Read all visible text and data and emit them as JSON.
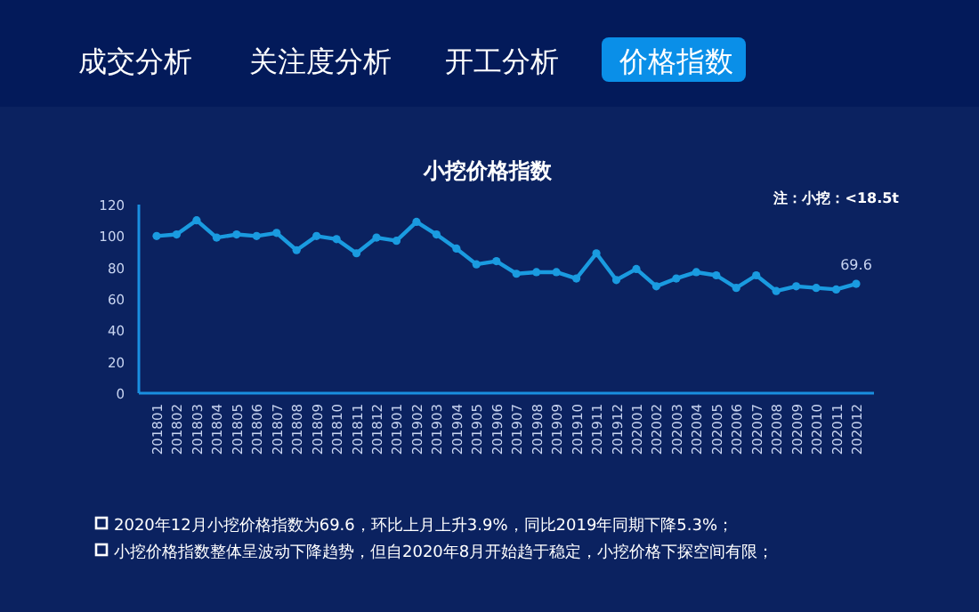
{
  "chart_data": {
    "type": "line",
    "title": "小挖价格指数",
    "annotations": [
      "成交分析",
      "关注度分析",
      "开工分析",
      "价格指数",
      "注：小挖：<18.5t",
      "2020年12月小挖价格指数为69.6，环比上月上升3.9%，同比2019年同期下降5.3%；",
      "小挖价格指数整体呈波动下降趋势，但自2020年8月开始趋于稳定，小挖价格下探空间有限；"
    ],
    "categories": [
      "201801",
      "201802",
      "201803",
      "201804",
      "201805",
      "201806",
      "201807",
      "201808",
      "201809",
      "201810",
      "201811",
      "201812",
      "201901",
      "201902",
      "201903",
      "201904",
      "201905",
      "201906",
      "201907",
      "201908",
      "201909",
      "201910",
      "201911",
      "201912",
      "202001",
      "202002",
      "202003",
      "202004",
      "202005",
      "202006",
      "202007",
      "202008",
      "202009",
      "202010",
      "202011",
      "202012"
    ],
    "series": [
      {
        "color": "#1a9be0",
        "values": [
          100,
          101,
          110,
          99,
          101,
          100,
          102,
          91,
          100,
          98,
          89,
          99,
          97,
          109,
          101,
          92,
          82,
          84,
          76,
          77,
          77,
          73,
          89,
          72,
          79,
          68,
          73,
          77,
          75,
          67,
          75,
          65,
          68,
          67,
          66,
          69.6
        ],
        "value_labels": [
          null,
          null,
          null,
          null,
          null,
          null,
          null,
          null,
          null,
          null,
          null,
          null,
          null,
          null,
          null,
          null,
          null,
          null,
          null,
          null,
          null,
          null,
          null,
          null,
          null,
          null,
          null,
          null,
          null,
          null,
          null,
          null,
          null,
          null,
          null,
          "69.6"
        ]
      }
    ],
    "ylim": [
      0,
      120
    ],
    "yticks": [
      0,
      20,
      40,
      60,
      80,
      100,
      120
    ],
    "marker": "circle",
    "grid": false
  }
}
